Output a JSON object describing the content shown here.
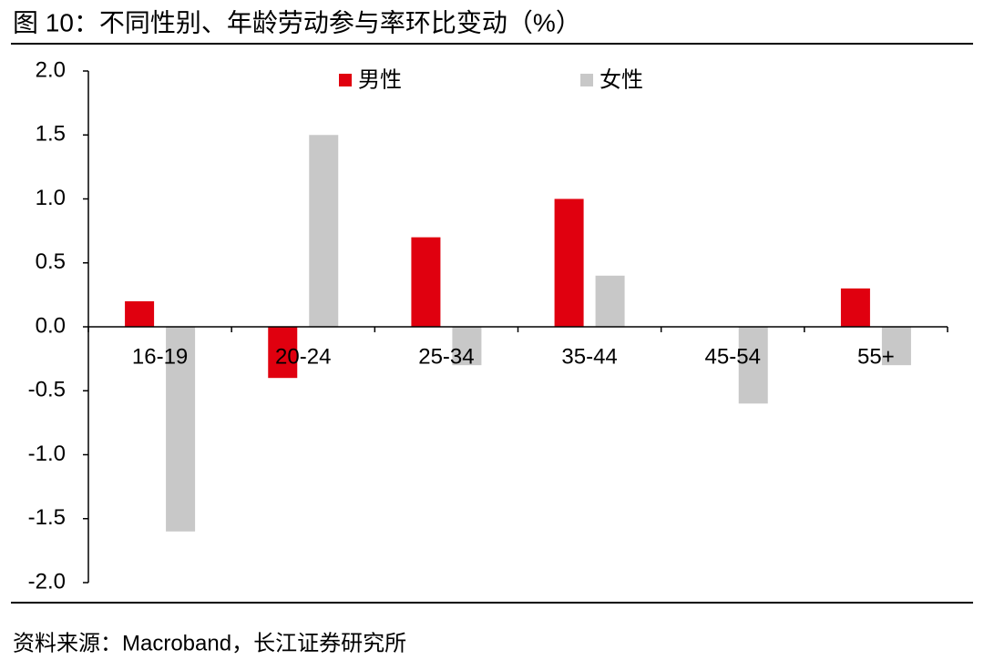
{
  "chart_data": {
    "type": "bar",
    "title": "图 10：不同性别、年龄劳动参与率环比变动（%）",
    "source": "资料来源：Macroband，长江证券研究所",
    "categories": [
      "16-19",
      "20-24",
      "25-34",
      "35-44",
      "45-54",
      "55+"
    ],
    "series": [
      {
        "name": "男性",
        "color": "#e0000f",
        "values": [
          0.2,
          -0.4,
          0.7,
          1.0,
          0,
          0.3
        ]
      },
      {
        "name": "女性",
        "color": "#c8c8c8",
        "values": [
          -1.6,
          1.5,
          -0.3,
          0.4,
          -0.6,
          -0.3
        ]
      }
    ],
    "ylim": [
      -2,
      2
    ],
    "yticks": [
      {
        "value": 2,
        "label": "2.0"
      },
      {
        "value": 1.5,
        "label": "1.5"
      },
      {
        "value": 1,
        "label": "1.0"
      },
      {
        "value": 0.5,
        "label": "0.5"
      },
      {
        "value": 0,
        "label": "0.0"
      },
      {
        "value": -0.5,
        "label": "-0.5"
      },
      {
        "value": -1,
        "label": "-1.0"
      },
      {
        "value": -1.5,
        "label": "-1.5"
      },
      {
        "value": -2,
        "label": "-2.0"
      }
    ],
    "legend": "top",
    "grid": false
  }
}
